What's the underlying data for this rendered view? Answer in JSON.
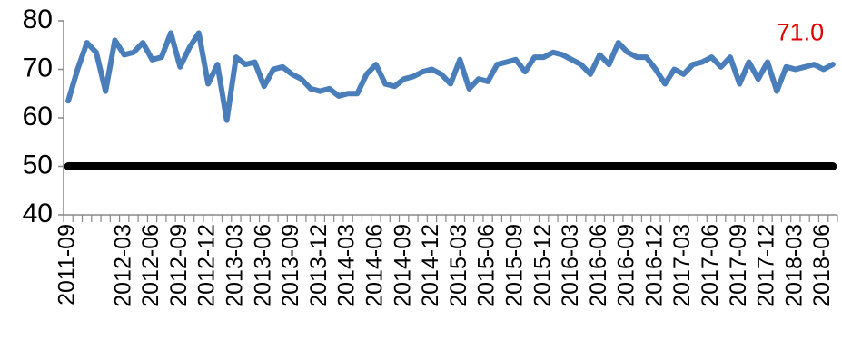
{
  "chart_data": {
    "type": "line",
    "categories": [
      "2011-09",
      null,
      null,
      null,
      null,
      null,
      "2012-03",
      null,
      null,
      "2012-06",
      null,
      null,
      "2012-09",
      null,
      null,
      "2012-12",
      null,
      null,
      "2013-03",
      null,
      null,
      "2013-06",
      null,
      null,
      "2013-09",
      null,
      null,
      "2013-12",
      null,
      null,
      "2014-03",
      null,
      null,
      "2014-06",
      null,
      null,
      "2014-09",
      null,
      null,
      "2014-12",
      null,
      null,
      "2015-03",
      null,
      null,
      "2015-06",
      null,
      null,
      "2015-09",
      null,
      null,
      "2015-12",
      null,
      null,
      "2016-03",
      null,
      null,
      "2016-06",
      null,
      null,
      "2016-09",
      null,
      null,
      "2016-12",
      null,
      null,
      "2017-03",
      null,
      null,
      "2017-06",
      null,
      null,
      "2017-09",
      null,
      null,
      "2017-12",
      null,
      null,
      "2018-03",
      null,
      null,
      "2018-06",
      null
    ],
    "series": [
      {
        "color": "#4a7ebb",
        "values": [
          63.5,
          70,
          75.5,
          73.5,
          65.5,
          76,
          73,
          73.5,
          75.5,
          72,
          72.5,
          77.5,
          70.5,
          74.5,
          77.5,
          67,
          71,
          59.5,
          72.5,
          71,
          71.5,
          66.5,
          70,
          70.5,
          69,
          68,
          66,
          65.5,
          66,
          64.5,
          65,
          65,
          69,
          71,
          67,
          66.5,
          68,
          68.5,
          69.5,
          70,
          69,
          67,
          72,
          66,
          68,
          67.5,
          71,
          71.5,
          72,
          69.5,
          72.5,
          72.5,
          73.5,
          73,
          72,
          71,
          69,
          73,
          71,
          75.5,
          73.5,
          72.5,
          72.5,
          70,
          67,
          70,
          69,
          71,
          71.5,
          72.5,
          70.5,
          72.5,
          67,
          71.5,
          68,
          71.5,
          65.5,
          70.5,
          70,
          70.5,
          71,
          70,
          71
        ],
        "value_labels": [
          null,
          null,
          null,
          null,
          null,
          null,
          null,
          null,
          null,
          null,
          null,
          null,
          null,
          null,
          null,
          null,
          null,
          null,
          null,
          null,
          null,
          null,
          null,
          null,
          null,
          null,
          null,
          null,
          null,
          null,
          null,
          null,
          null,
          null,
          null,
          null,
          null,
          null,
          null,
          null,
          null,
          null,
          null,
          null,
          null,
          null,
          null,
          null,
          null,
          null,
          null,
          null,
          null,
          null,
          null,
          null,
          null,
          null,
          null,
          null,
          null,
          null,
          null,
          null,
          null,
          null,
          null,
          null,
          null,
          null,
          null,
          null,
          null,
          null,
          null,
          null,
          null,
          null,
          null,
          null,
          null,
          null,
          "71.0"
        ]
      },
      {
        "color": "#000000",
        "values": [
          50,
          50,
          50,
          50,
          50,
          50,
          50,
          50,
          50,
          50,
          50,
          50,
          50,
          50,
          50,
          50,
          50,
          50,
          50,
          50,
          50,
          50,
          50,
          50,
          50,
          50,
          50,
          50,
          50,
          50,
          50,
          50,
          50,
          50,
          50,
          50,
          50,
          50,
          50,
          50,
          50,
          50,
          50,
          50,
          50,
          50,
          50,
          50,
          50,
          50,
          50,
          50,
          50,
          50,
          50,
          50,
          50,
          50,
          50,
          50,
          50,
          50,
          50,
          50,
          50,
          50,
          50,
          50,
          50,
          50,
          50,
          50,
          50,
          50,
          50,
          50,
          50,
          50,
          50,
          50,
          50,
          50,
          50
        ]
      }
    ],
    "ylim": [
      40,
      80
    ],
    "yticks": [
      40,
      50,
      60,
      70,
      80
    ],
    "grid": false
  }
}
